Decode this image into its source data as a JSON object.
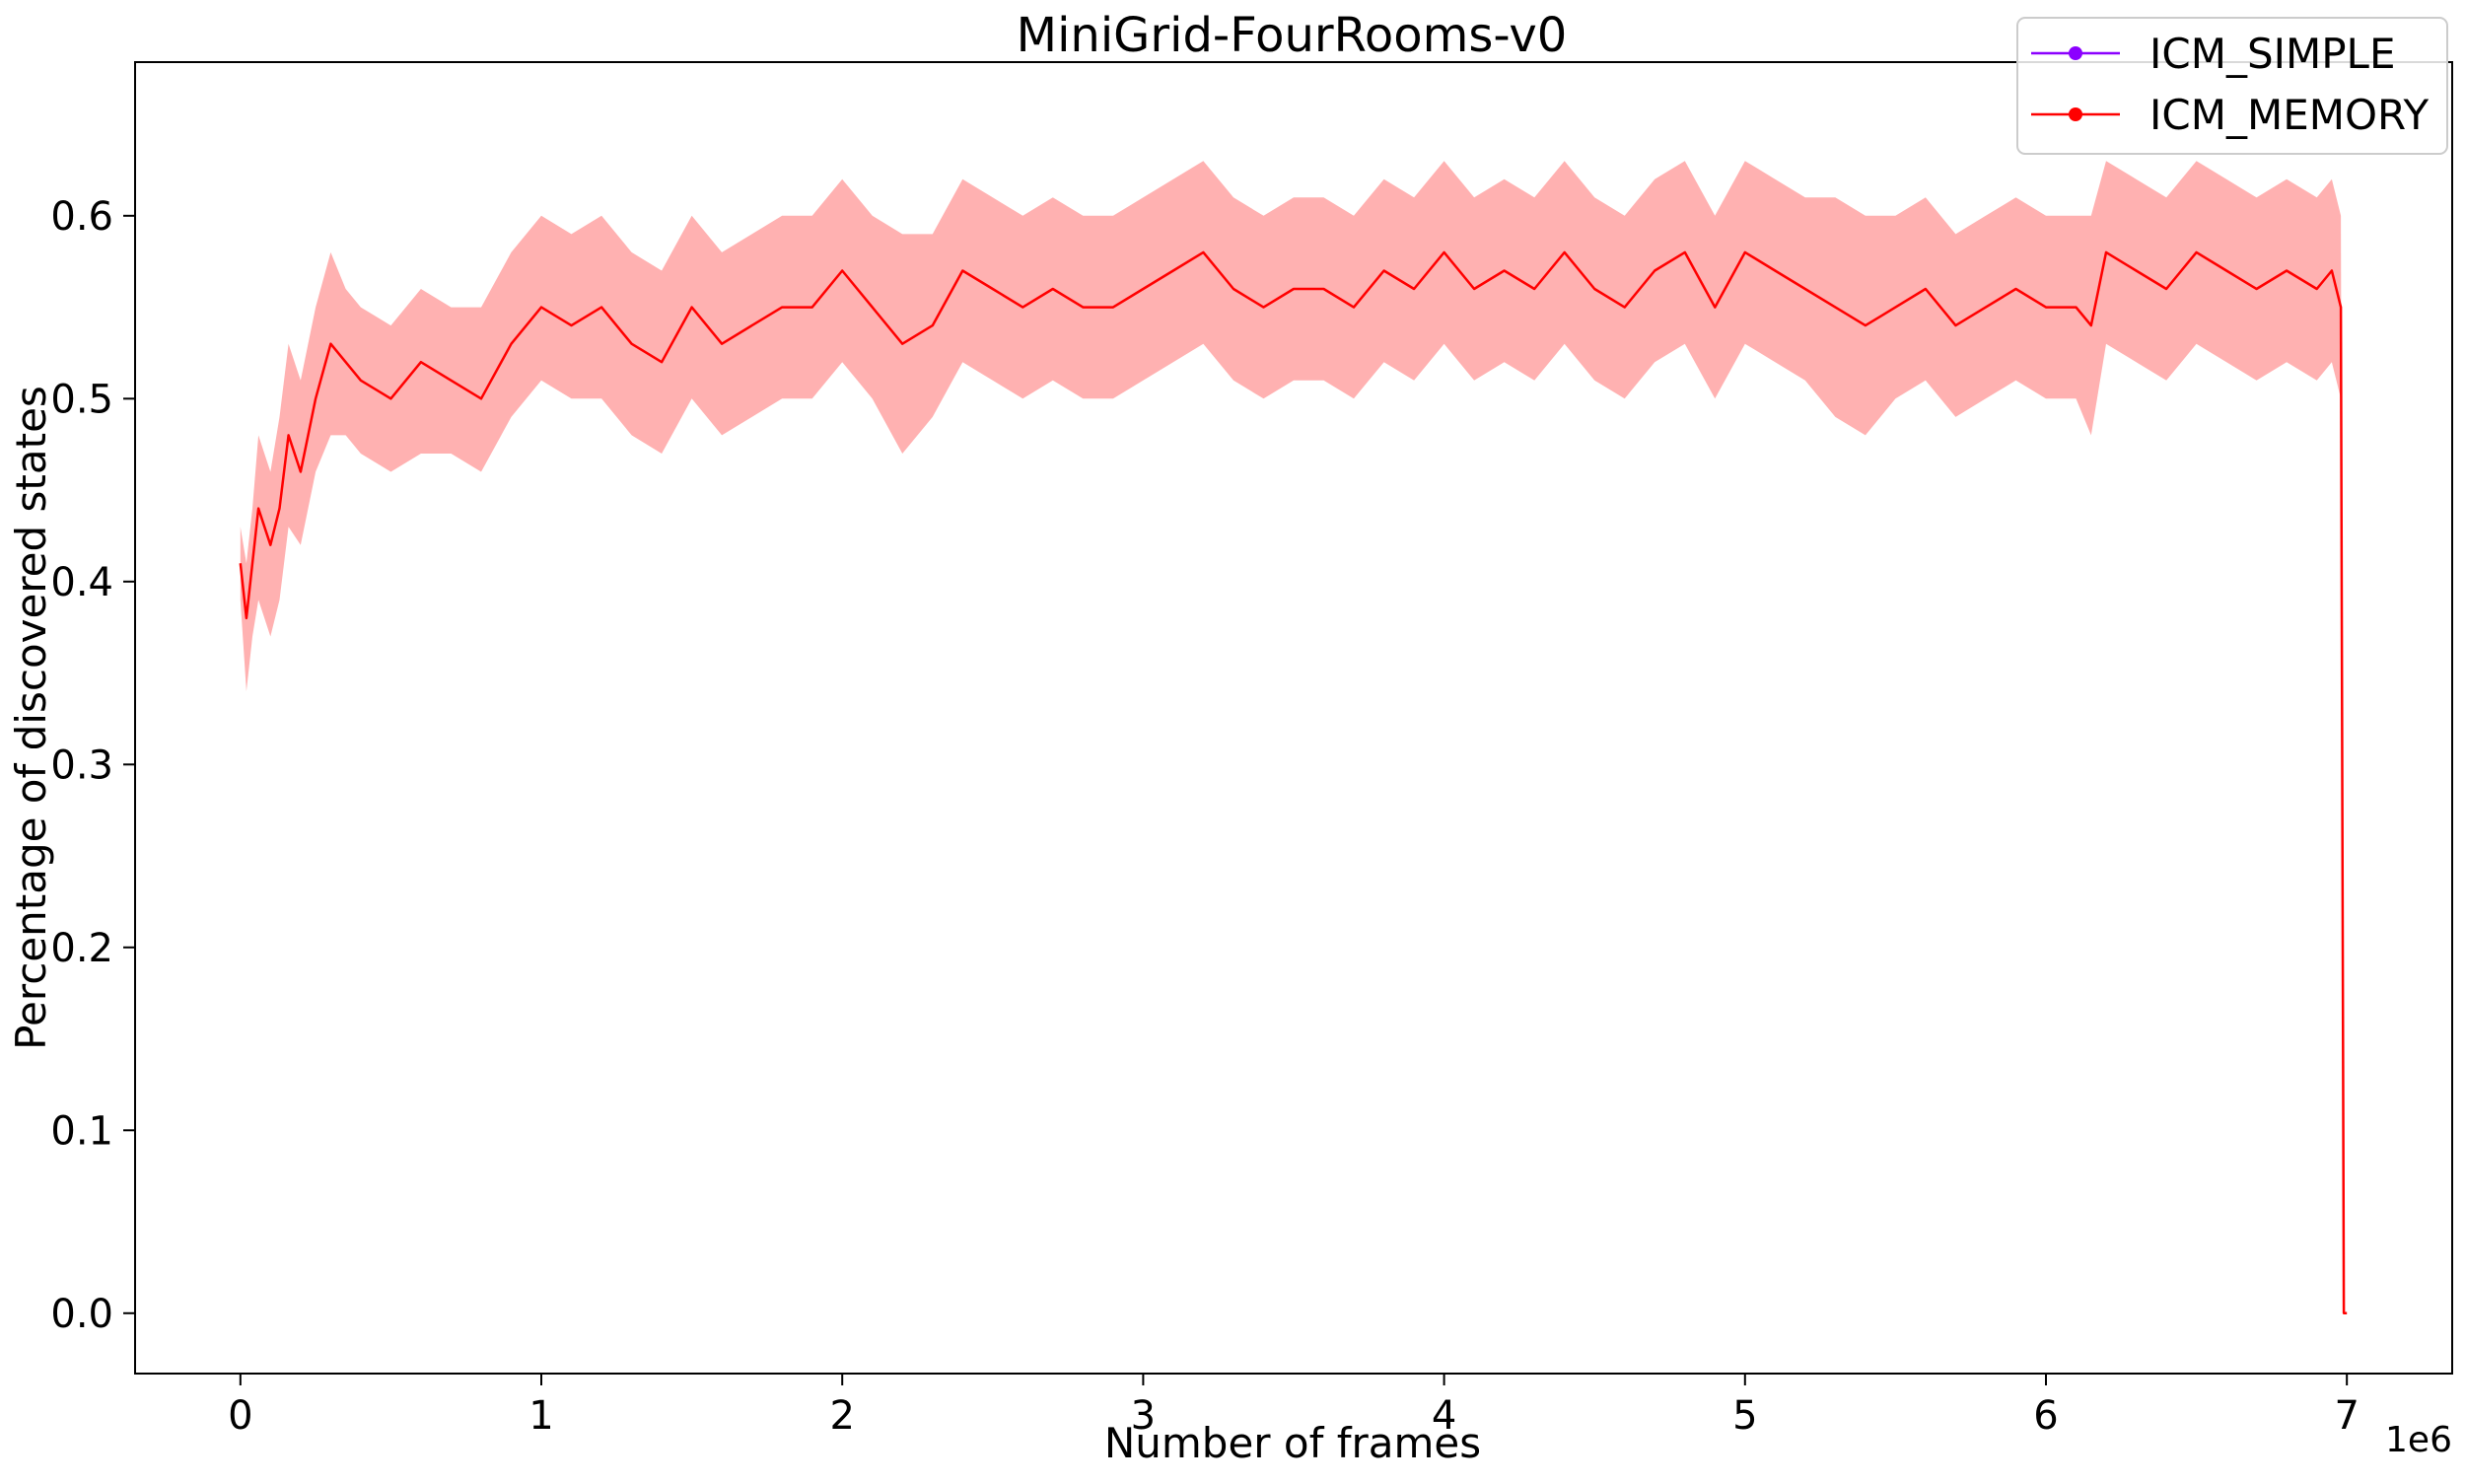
{
  "chart_data": {
    "type": "line",
    "title": "MiniGrid-FourRooms-v0",
    "xlabel": "Number of frames",
    "ylabel": "Percentage of discovered states",
    "x_offset_label": "1e6",
    "xlim": [
      -350000,
      7350000
    ],
    "ylim": [
      -0.033,
      0.684
    ],
    "x_ticks": [
      0,
      1,
      2,
      3,
      4,
      5,
      6,
      7
    ],
    "y_ticks": [
      "0.0",
      "0.1",
      "0.2",
      "0.3",
      "0.4",
      "0.5",
      "0.6"
    ],
    "grid": false,
    "legend_position": "top-right",
    "series": [
      {
        "name": "ICM_SIMPLE",
        "color": "#8b00ff",
        "marker": "circle",
        "x": [],
        "y": []
      },
      {
        "name": "ICM_MEMORY",
        "color": "#ff0000",
        "band_color": "#ffa8a8",
        "marker": "circle",
        "x": [
          0,
          20000,
          40000,
          60000,
          80000,
          100000,
          130000,
          160000,
          200000,
          250000,
          300000,
          350000,
          400000,
          500000,
          600000,
          700000,
          800000,
          900000,
          1000000,
          1100000,
          1200000,
          1300000,
          1400000,
          1500000,
          1600000,
          1700000,
          1800000,
          1900000,
          2000000,
          2100000,
          2200000,
          2300000,
          2400000,
          2500000,
          2600000,
          2700000,
          2800000,
          2900000,
          3000000,
          3100000,
          3200000,
          3300000,
          3400000,
          3500000,
          3600000,
          3700000,
          3800000,
          3900000,
          4000000,
          4100000,
          4200000,
          4300000,
          4400000,
          4500000,
          4600000,
          4700000,
          4800000,
          4900000,
          5000000,
          5100000,
          5200000,
          5300000,
          5400000,
          5500000,
          5600000,
          5700000,
          5800000,
          5900000,
          6000000,
          6100000,
          6150000,
          6200000,
          6300000,
          6400000,
          6500000,
          6600000,
          6700000,
          6800000,
          6900000,
          6950000,
          6980000,
          6990000,
          7000000
        ],
        "y": [
          0.41,
          0.38,
          0.41,
          0.44,
          0.43,
          0.42,
          0.44,
          0.48,
          0.46,
          0.5,
          0.53,
          0.52,
          0.51,
          0.5,
          0.52,
          0.51,
          0.5,
          0.53,
          0.55,
          0.54,
          0.55,
          0.53,
          0.52,
          0.55,
          0.53,
          0.54,
          0.55,
          0.55,
          0.57,
          0.55,
          0.53,
          0.54,
          0.57,
          0.56,
          0.55,
          0.56,
          0.55,
          0.55,
          0.56,
          0.57,
          0.58,
          0.56,
          0.55,
          0.56,
          0.56,
          0.55,
          0.57,
          0.56,
          0.58,
          0.56,
          0.57,
          0.56,
          0.58,
          0.56,
          0.55,
          0.57,
          0.58,
          0.55,
          0.58,
          0.57,
          0.56,
          0.55,
          0.54,
          0.55,
          0.56,
          0.54,
          0.55,
          0.56,
          0.55,
          0.55,
          0.54,
          0.58,
          0.57,
          0.56,
          0.58,
          0.57,
          0.56,
          0.57,
          0.56,
          0.57,
          0.55,
          0.0,
          0.0
        ],
        "y_lower": [
          0.39,
          0.34,
          0.37,
          0.39,
          0.38,
          0.37,
          0.39,
          0.43,
          0.42,
          0.46,
          0.48,
          0.48,
          0.47,
          0.46,
          0.47,
          0.47,
          0.46,
          0.49,
          0.51,
          0.5,
          0.5,
          0.48,
          0.47,
          0.5,
          0.48,
          0.49,
          0.5,
          0.5,
          0.52,
          0.5,
          0.47,
          0.49,
          0.52,
          0.51,
          0.5,
          0.51,
          0.5,
          0.5,
          0.51,
          0.52,
          0.53,
          0.51,
          0.5,
          0.51,
          0.51,
          0.5,
          0.52,
          0.51,
          0.53,
          0.51,
          0.52,
          0.51,
          0.53,
          0.51,
          0.5,
          0.52,
          0.53,
          0.5,
          0.53,
          0.52,
          0.51,
          0.49,
          0.48,
          0.5,
          0.51,
          0.49,
          0.5,
          0.51,
          0.5,
          0.5,
          0.48,
          0.53,
          0.52,
          0.51,
          0.53,
          0.52,
          0.51,
          0.52,
          0.51,
          0.52,
          0.5,
          0.0,
          0.0
        ],
        "y_upper": [
          0.43,
          0.41,
          0.44,
          0.48,
          0.47,
          0.46,
          0.49,
          0.53,
          0.51,
          0.55,
          0.58,
          0.56,
          0.55,
          0.54,
          0.56,
          0.55,
          0.55,
          0.58,
          0.6,
          0.59,
          0.6,
          0.58,
          0.57,
          0.6,
          0.58,
          0.59,
          0.6,
          0.6,
          0.62,
          0.6,
          0.59,
          0.59,
          0.62,
          0.61,
          0.6,
          0.61,
          0.6,
          0.6,
          0.61,
          0.62,
          0.63,
          0.61,
          0.6,
          0.61,
          0.61,
          0.6,
          0.62,
          0.61,
          0.63,
          0.61,
          0.62,
          0.61,
          0.63,
          0.61,
          0.6,
          0.62,
          0.63,
          0.6,
          0.63,
          0.62,
          0.61,
          0.61,
          0.6,
          0.6,
          0.61,
          0.59,
          0.6,
          0.61,
          0.6,
          0.6,
          0.6,
          0.63,
          0.62,
          0.61,
          0.63,
          0.62,
          0.61,
          0.62,
          0.61,
          0.62,
          0.6,
          0.0,
          0.0
        ]
      }
    ]
  }
}
